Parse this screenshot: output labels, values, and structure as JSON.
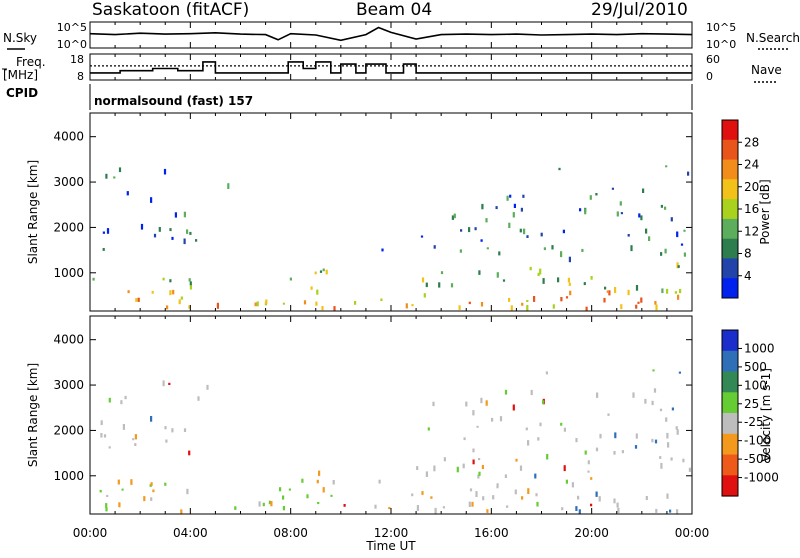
{
  "header": {
    "station": "Saskatoon (fitACF)",
    "beam": "Beam 04",
    "date": "29/Jul/2010"
  },
  "left_labels": {
    "nsky": "N.Sky",
    "freq_line1": "Freq.",
    "freq_line2": "[MHz]",
    "cpid": "CPID"
  },
  "right_labels": {
    "nsearch": "N.Search",
    "nave": "Nave"
  },
  "cpid_text": "normalsound (fast) 157",
  "colors": {
    "power": [
      "#0022ee",
      "#2244aa",
      "#2e7d4f",
      "#5cae5c",
      "#a8d21e",
      "#f2c21a",
      "#f28c1a",
      "#e8541a",
      "#e01010"
    ],
    "velocity": [
      "#e01010",
      "#ee5a1a",
      "#f39a1e",
      "#bdbdbd",
      "#66cc33",
      "#338855",
      "#2e6fb8",
      "#1b2ecc"
    ]
  },
  "chart_data": [
    {
      "type": "line",
      "panel": "noise",
      "title": "Saskatoon (fitACF) Beam 04 29/Jul/2010",
      "ylabel": "N.Sky",
      "y2label": "N.Search",
      "ytick_labels": [
        "10^5",
        "10^0"
      ],
      "y2tick_labels": [
        "10^5",
        "10^0"
      ],
      "x_hours": [
        0,
        1,
        2,
        3,
        4,
        5,
        6,
        7,
        7.5,
        8,
        9,
        10,
        11,
        11.5,
        12,
        13,
        14,
        15,
        16,
        17,
        18,
        19,
        20,
        21,
        22,
        23,
        24
      ],
      "series": [
        {
          "values": [
            2.8,
            2.6,
            2.9,
            2.7,
            2.8,
            3.0,
            2.7,
            2.6,
            1.4,
            2.8,
            2.5,
            1.3,
            2.6,
            4.2,
            3.1,
            1.6,
            2.6,
            2.7,
            2.6,
            2.7,
            2.5,
            2.6,
            2.7,
            2.6,
            2.8,
            2.7,
            2.6
          ]
        }
      ]
    },
    {
      "type": "line",
      "panel": "frequency",
      "ylabel": "Freq. [MHz]",
      "y2label": "Nave",
      "ylim": [
        8,
        18
      ],
      "y2lim": [
        0,
        60
      ],
      "ytick_labels": [
        "18",
        "8"
      ],
      "y2tick_labels": [
        "60",
        "0"
      ],
      "x_hours": [
        0,
        0.8,
        1.2,
        2.0,
        2.5,
        3.5,
        4.2,
        4.5,
        5.0,
        7.3,
        7.9,
        8.5,
        9.0,
        9.6,
        10.0,
        10.6,
        11.0,
        11.8,
        12.5,
        13.0,
        22.6,
        23.7,
        24
      ],
      "series": [
        {
          "name": "Freq.",
          "values": [
            10.3,
            10.3,
            11.3,
            11.3,
            12.3,
            11.3,
            11.3,
            15.3,
            10.3,
            10.3,
            15.3,
            12.3,
            15.3,
            10.3,
            14.3,
            10.3,
            14.3,
            10.3,
            14.3,
            10.3,
            10.3,
            10.3,
            10.3
          ]
        },
        {
          "name": "Nave",
          "values": [
            33,
            33,
            33,
            33,
            33,
            33,
            33,
            33,
            33,
            33,
            33,
            33,
            33,
            33,
            33,
            33,
            33,
            33,
            33,
            33,
            33,
            33,
            33
          ]
        }
      ]
    },
    {
      "type": "heatmap",
      "panel": "power",
      "xlabel": "",
      "ylabel": "Slant Range [km]",
      "zlabel": "Power [dB]",
      "xlim": [
        0,
        24
      ],
      "ylim": [
        180,
        4500
      ],
      "zlim": [
        0,
        32
      ],
      "ytick_labels": [
        "1000",
        "2000",
        "3000",
        "4000"
      ],
      "colorbar_tick_labels": [
        "4",
        "8",
        "12",
        "16",
        "20",
        "24",
        "28"
      ]
    },
    {
      "type": "heatmap",
      "panel": "velocity",
      "xlabel": "Time UT",
      "ylabel": "Slant Range [km]",
      "zlabel": "Velocity [m s-1]",
      "xlim": [
        0,
        24
      ],
      "ylim": [
        180,
        4500
      ],
      "ytick_labels": [
        "1000",
        "2000",
        "3000",
        "4000"
      ],
      "xtick_labels": [
        "00:00",
        "04:00",
        "08:00",
        "12:00",
        "16:00",
        "20:00",
        "00:00"
      ],
      "colorbar_tick_labels": [
        "1000",
        "500",
        "100",
        "25",
        "-25",
        "-100",
        "-500",
        "-1000"
      ]
    }
  ]
}
